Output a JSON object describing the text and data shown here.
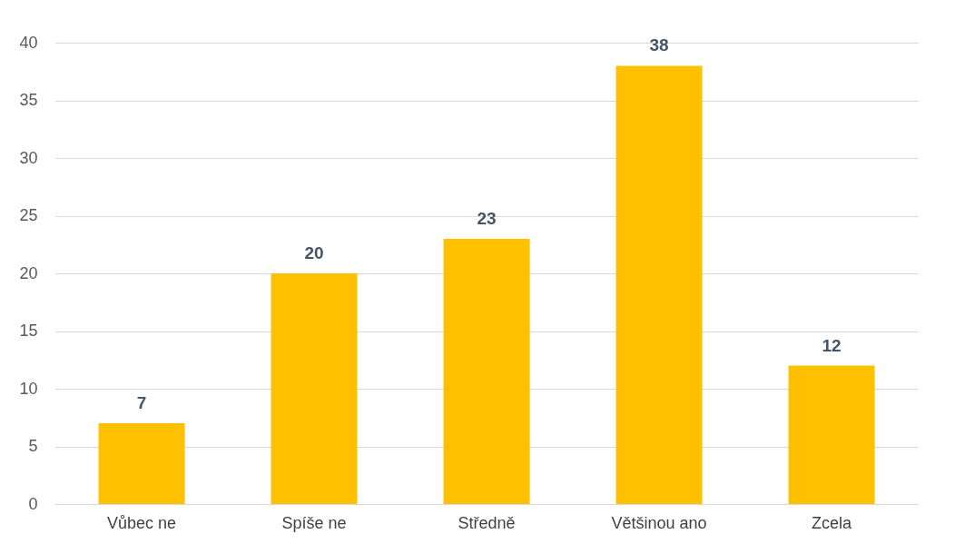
{
  "chart_data": {
    "type": "bar",
    "categories": [
      "Vůbec ne",
      "Spíše ne",
      "Středně",
      "Většinou ano",
      "Zcela"
    ],
    "values": [
      7,
      20,
      23,
      38,
      12
    ],
    "color": "#ffc000",
    "ylim": [
      0,
      40
    ],
    "yticks": [
      0,
      5,
      10,
      15,
      20,
      25,
      30,
      35,
      40
    ],
    "grid": "y",
    "data_labels": true
  }
}
